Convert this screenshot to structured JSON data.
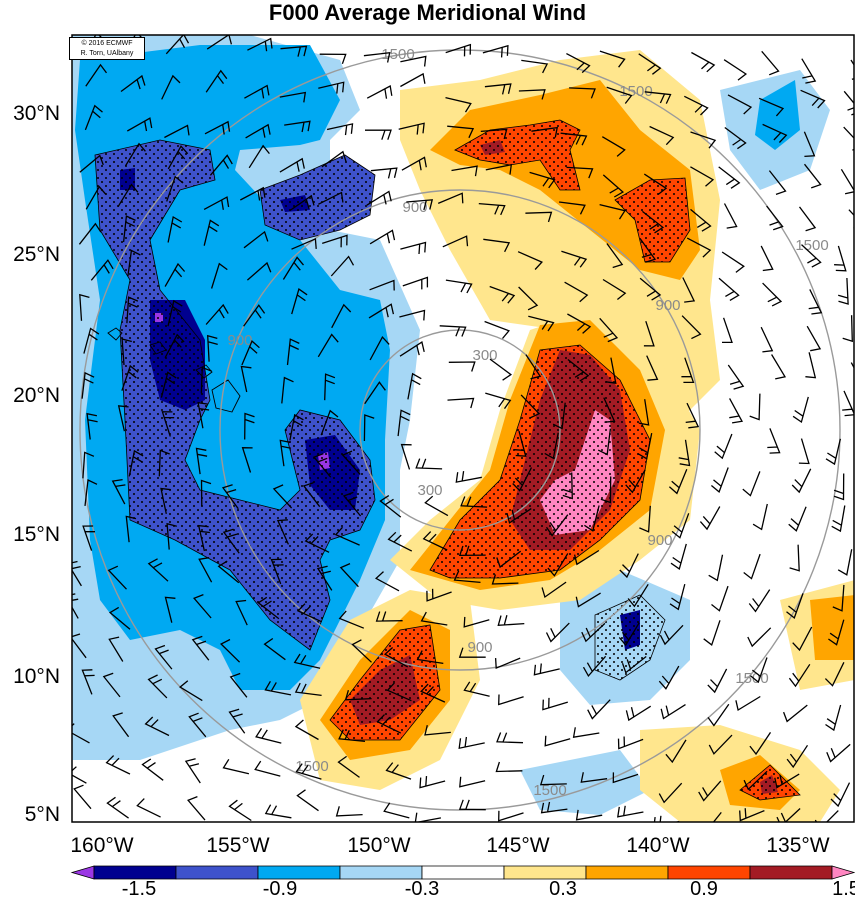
{
  "title": "F000 Average Meridional Wind",
  "credit": {
    "line1": "© 2016 ECMWF",
    "line2": "R. Torn, UAlbany"
  },
  "latitude_labels": [
    "30°N",
    "25°N",
    "20°N",
    "15°N",
    "10°N",
    "5°N"
  ],
  "longitude_labels": [
    "160°W",
    "155°W",
    "150°W",
    "145°W",
    "140°W",
    "135°W"
  ],
  "contour_labels": [
    "300",
    "300",
    "900",
    "900",
    "900",
    "900",
    "900",
    "1500",
    "1500",
    "1500",
    "1500",
    "1500",
    "1500"
  ],
  "colorbar": {
    "labels": [
      "-1.5",
      "-0.9",
      "-0.3",
      "0.3",
      "0.9",
      "1.5"
    ],
    "colors": [
      "#9b37e4",
      "#00008f",
      "#3e52cb",
      "#00a9f2",
      "#a6d7f5",
      "#ffffff",
      "#ffe68d",
      "#ffa500",
      "#ff4500",
      "#a31b24",
      "#ff86c1"
    ]
  },
  "palette": {
    "purple": "#9b37e4",
    "navy": "#00008f",
    "blue": "#3e52cb",
    "cyan": "#00a9f2",
    "lightblue": "#a6d7f5",
    "yellow": "#ffe68d",
    "orange": "#ffa500",
    "red": "#ff4500",
    "darkred": "#a31b24",
    "pink": "#ff86c1",
    "contour": "#9a9a9a"
  }
}
